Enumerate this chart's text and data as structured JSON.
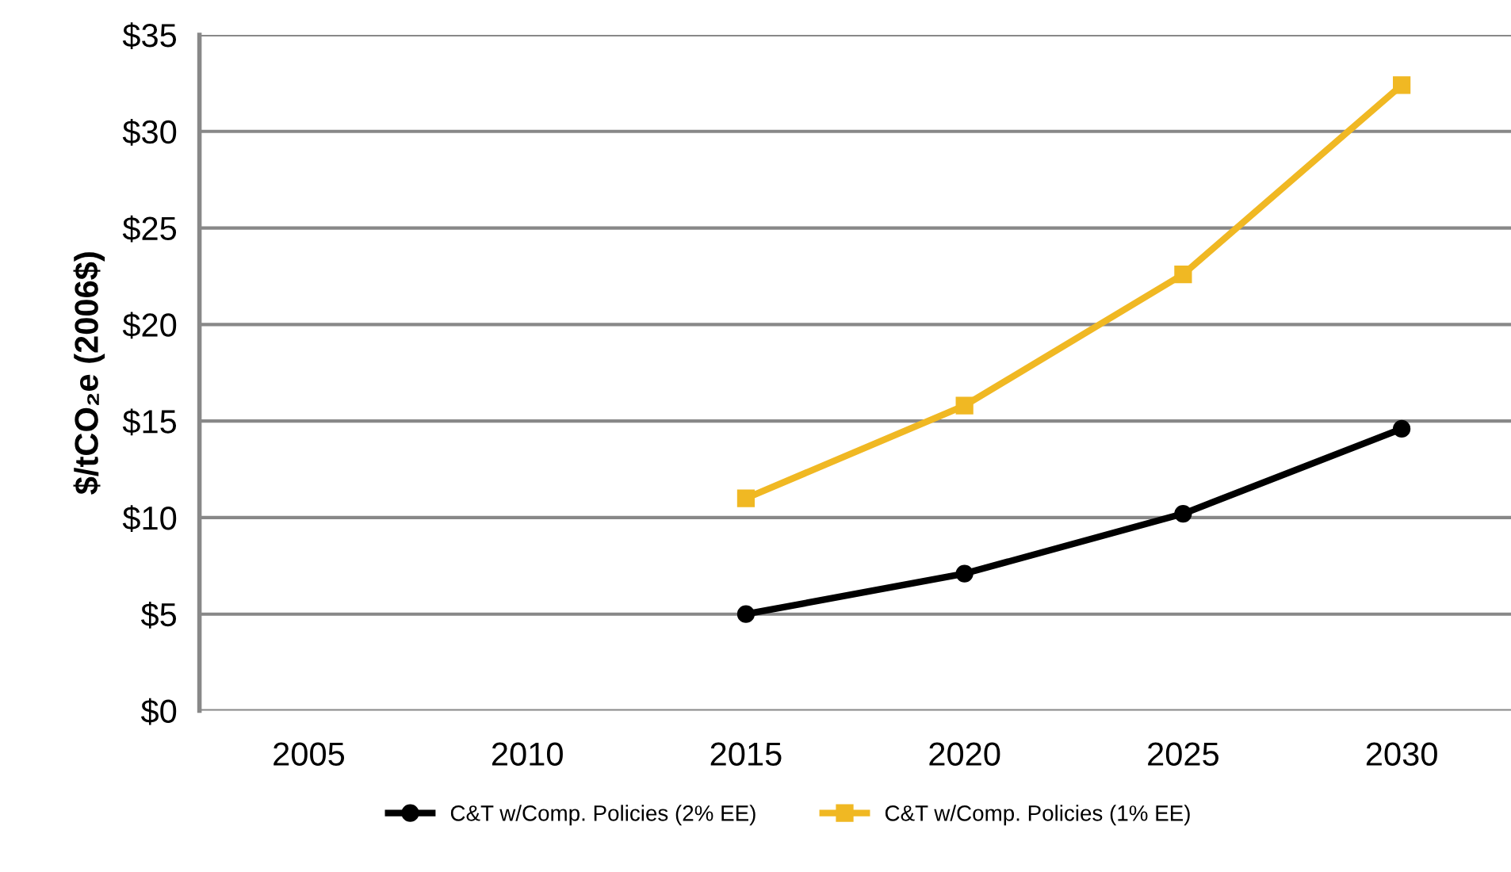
{
  "chart_data": {
    "type": "line",
    "ylabel": "$/tCO₂e (2006$)",
    "categories": [
      "2005",
      "2010",
      "2015",
      "2020",
      "2025",
      "2030"
    ],
    "series": [
      {
        "name": "C&T w/Comp. Policies (2% EE)",
        "color": "#000000",
        "marker": "circle",
        "values": [
          null,
          null,
          5.0,
          7.1,
          10.2,
          14.6
        ]
      },
      {
        "name": "C&T w/Comp. Policies (1% EE)",
        "color": "#f0b823",
        "marker": "square",
        "values": [
          null,
          null,
          11.0,
          15.8,
          22.6,
          32.4
        ]
      }
    ],
    "ylim": [
      0,
      35
    ],
    "yticks": [
      {
        "value": 0,
        "label": "$0"
      },
      {
        "value": 5,
        "label": "$5"
      },
      {
        "value": 10,
        "label": "$10"
      },
      {
        "value": 15,
        "label": "$15"
      },
      {
        "value": 20,
        "label": "$20"
      },
      {
        "value": 25,
        "label": "$25"
      },
      {
        "value": 30,
        "label": "$30"
      },
      {
        "value": 35,
        "label": "$35"
      }
    ],
    "grid": "y",
    "legend": "bottom",
    "line_style": "solid"
  }
}
